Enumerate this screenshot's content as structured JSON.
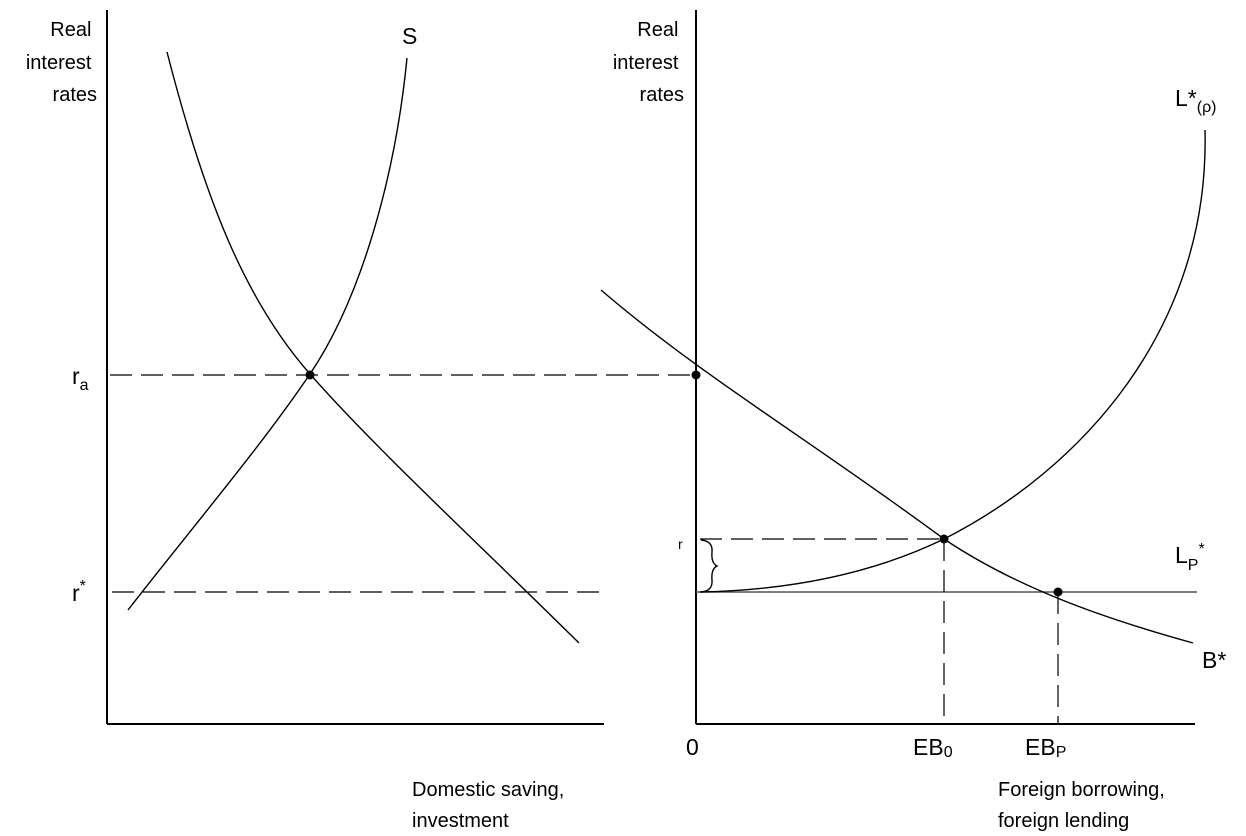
{
  "left_panel": {
    "y_axis_label": [
      "Real",
      "interest",
      "rates"
    ],
    "x_axis_label": [
      "Domestic saving,",
      "investment"
    ],
    "curve_s_label": "S",
    "rate_a": {
      "base": "r",
      "sub": "a"
    },
    "rate_star": {
      "base": "r",
      "sup": "*"
    }
  },
  "right_panel": {
    "y_axis_label": [
      "Real",
      "interest",
      "rates"
    ],
    "x_axis_label": [
      "Foreign borrowing,",
      "foreign lending"
    ],
    "origin_label": "0",
    "rate_r": "r",
    "curve_l_rho": {
      "base": "L*",
      "sub": "(ρ)"
    },
    "curve_lp": {
      "base": "L",
      "sub": "P",
      "sup": "*"
    },
    "curve_b": "B*",
    "eb0": {
      "base": "EB",
      "sub": "0"
    },
    "ebp": {
      "base": "EB",
      "sub": "P"
    }
  }
}
